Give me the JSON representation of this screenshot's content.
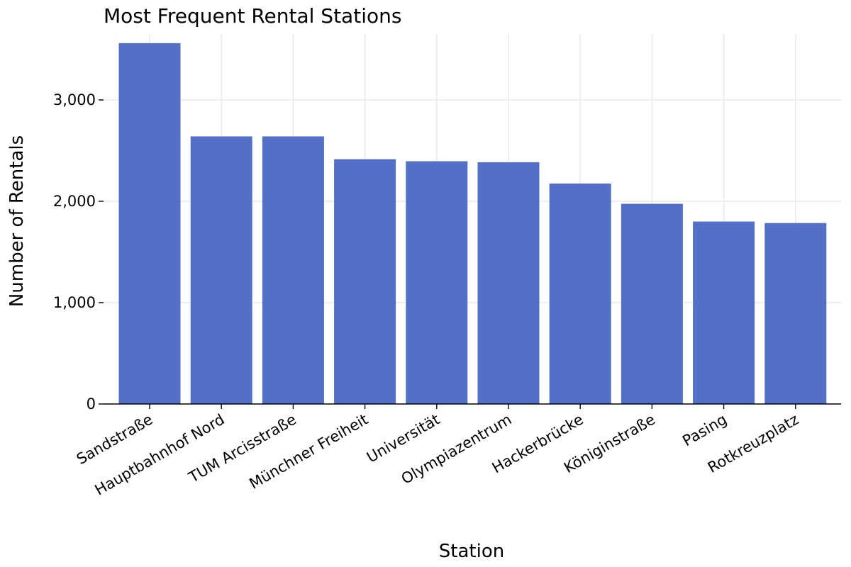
{
  "chart_data": {
    "type": "bar",
    "title": "Most Frequent Rental Stations",
    "xlabel": "Station",
    "ylabel": "Number of Rentals",
    "categories": [
      "Sandstraße",
      "Hauptbahnhof Nord",
      "TUM Arcisstraße",
      "Münchner Freiheit",
      "Universität",
      "Olympiazentrum",
      "Hackerbrücke",
      "Königinstraße",
      "Pasing",
      "Rotkreuzplatz"
    ],
    "values": [
      3560,
      2640,
      2640,
      2415,
      2395,
      2385,
      2175,
      1975,
      1800,
      1785
    ],
    "ylim": [
      0,
      3650
    ],
    "yticks": [
      0,
      1000,
      2000,
      3000
    ],
    "ytick_labels": [
      "0",
      "1,000",
      "2,000",
      "3,000"
    ],
    "bar_color": "#5470c6",
    "grid": true,
    "legend": "none"
  }
}
